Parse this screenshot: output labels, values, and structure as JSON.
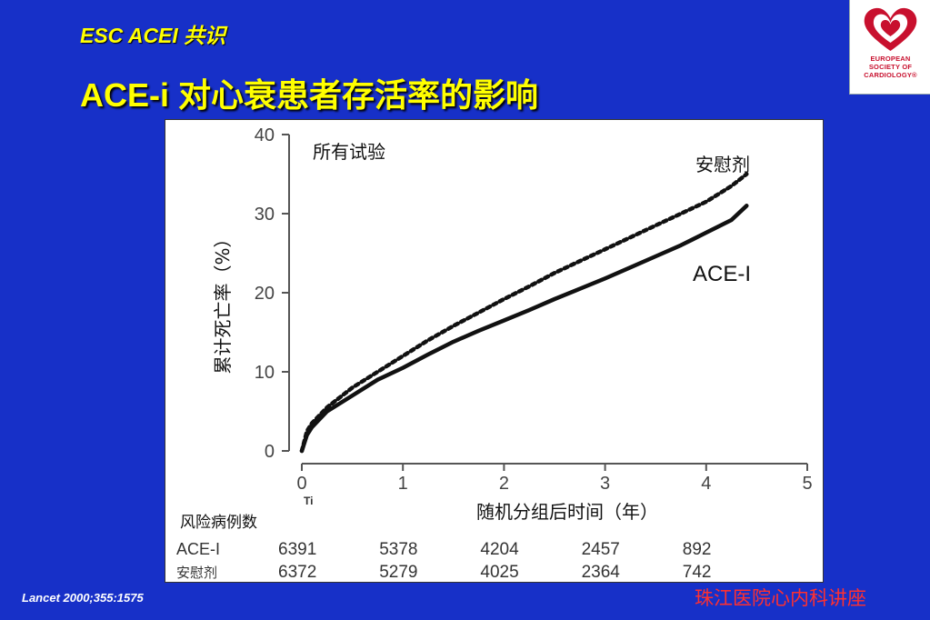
{
  "slide": {
    "subtitle": "ESC ACEI 共识",
    "title": "ACE-i 对心衰患者存活率的影响",
    "citation": "Lancet 2000;355:1575",
    "footer": "珠江医院心内科讲座",
    "background_color": "#1730c8",
    "title_color": "#ffff00",
    "footer_color": "#ff3030"
  },
  "logo": {
    "icon": "heart-icon",
    "lines": [
      "EUROPEAN",
      "SOCIETY OF",
      "CARDIOLOGY®"
    ],
    "color": "#c8102e"
  },
  "chart_data": {
    "type": "line",
    "title": "所有试验",
    "xlabel": "随机分组后时间（年）",
    "ylabel": "累计死亡率（%）",
    "xlim": [
      0,
      5
    ],
    "ylim": [
      0,
      40
    ],
    "xticks": [
      "0",
      "1",
      "2",
      "3",
      "4",
      "5"
    ],
    "yticks": [
      "0",
      "10",
      "20",
      "30",
      "40"
    ],
    "x_extra_label": "Ti",
    "grid": false,
    "series": [
      {
        "name": "安慰剂",
        "style": "dotted",
        "x": [
          0,
          0.05,
          0.1,
          0.25,
          0.5,
          0.75,
          1.0,
          1.25,
          1.5,
          1.75,
          2.0,
          2.25,
          2.5,
          2.75,
          3.0,
          3.25,
          3.5,
          3.75,
          4.0,
          4.25,
          4.4
        ],
        "y": [
          0,
          2.5,
          3.5,
          5.5,
          8.0,
          10.0,
          12.0,
          14.0,
          15.8,
          17.5,
          19.2,
          20.8,
          22.5,
          24.0,
          25.5,
          27.0,
          28.5,
          30.0,
          31.5,
          33.5,
          35.0
        ]
      },
      {
        "name": "ACE-I",
        "style": "solid",
        "x": [
          0,
          0.05,
          0.1,
          0.25,
          0.5,
          0.75,
          1.0,
          1.25,
          1.5,
          1.75,
          2.0,
          2.25,
          2.5,
          2.75,
          3.0,
          3.25,
          3.5,
          3.75,
          4.0,
          4.25,
          4.4
        ],
        "y": [
          0,
          2.0,
          3.0,
          5.0,
          7.0,
          9.0,
          10.5,
          12.2,
          13.8,
          15.2,
          16.5,
          17.8,
          19.2,
          20.5,
          21.8,
          23.2,
          24.6,
          26.0,
          27.6,
          29.2,
          31.0
        ]
      }
    ],
    "risk_table": {
      "heading": "风险病例数",
      "rows": [
        {
          "label": "ACE-I",
          "values": [
            "6391",
            "5378",
            "4204",
            "2457",
            "892"
          ]
        },
        {
          "label": "安慰剂",
          "values": [
            "6372",
            "5279",
            "4025",
            "2364",
            "742"
          ]
        }
      ]
    }
  }
}
